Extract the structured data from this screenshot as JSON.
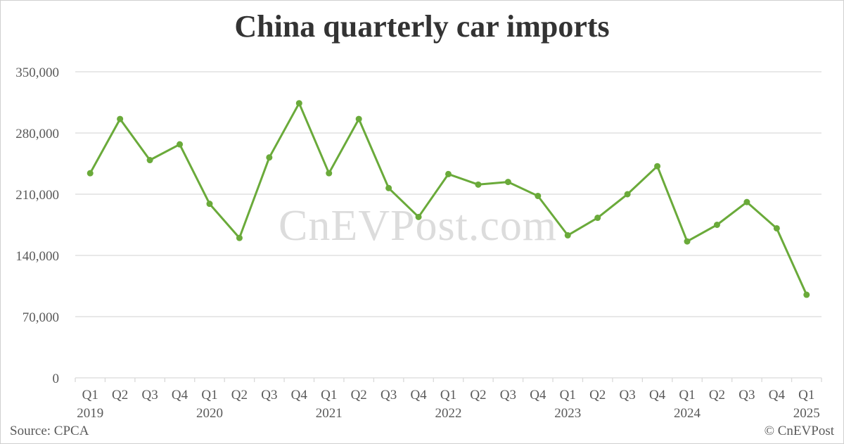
{
  "title": "China quarterly car imports",
  "watermark": "CnEVPost.com",
  "footer": {
    "source": "Source: CPCA",
    "copyright": "© CnEVPost"
  },
  "colors": {
    "line": "#6aaa3a",
    "grid": "#d9d9d9",
    "text": "#595959",
    "title": "#333333"
  },
  "chart_data": {
    "type": "line",
    "title": "China quarterly car imports",
    "xlabel": "",
    "ylabel": "",
    "ylim": [
      0,
      350000
    ],
    "yticks": [
      0,
      70000,
      140000,
      210000,
      280000,
      350000
    ],
    "ytick_labels": [
      "0",
      "70,000",
      "140,000",
      "210,000",
      "280,000",
      "350,000"
    ],
    "grid": true,
    "legend": "none",
    "categories": [
      "Q1 2019",
      "Q2 2019",
      "Q3 2019",
      "Q4 2019",
      "Q1 2020",
      "Q2 2020",
      "Q3 2020",
      "Q4 2020",
      "Q1 2021",
      "Q2 2021",
      "Q3 2021",
      "Q4 2021",
      "Q1 2022",
      "Q2 2022",
      "Q3 2022",
      "Q4 2022",
      "Q1 2023",
      "Q2 2023",
      "Q3 2023",
      "Q4 2023",
      "Q1 2024",
      "Q2 2024",
      "Q3 2024",
      "Q4 2024",
      "Q1 2025"
    ],
    "quarter_labels": [
      "Q1",
      "Q2",
      "Q3",
      "Q4",
      "Q1",
      "Q2",
      "Q3",
      "Q4",
      "Q1",
      "Q2",
      "Q3",
      "Q4",
      "Q1",
      "Q2",
      "Q3",
      "Q4",
      "Q1",
      "Q2",
      "Q3",
      "Q4",
      "Q1",
      "Q2",
      "Q3",
      "Q4",
      "Q1"
    ],
    "year_labels": [
      {
        "index": 0,
        "label": "2019"
      },
      {
        "index": 4,
        "label": "2020"
      },
      {
        "index": 8,
        "label": "2021"
      },
      {
        "index": 12,
        "label": "2022"
      },
      {
        "index": 16,
        "label": "2023"
      },
      {
        "index": 20,
        "label": "2024"
      },
      {
        "index": 24,
        "label": "2025"
      }
    ],
    "series": [
      {
        "name": "Car imports",
        "values": [
          234000,
          296000,
          249000,
          267000,
          199000,
          160000,
          252000,
          314000,
          234000,
          296000,
          217000,
          184000,
          233000,
          221000,
          224000,
          208000,
          163000,
          183000,
          210000,
          242000,
          156000,
          175000,
          201000,
          171000,
          95000
        ]
      }
    ]
  }
}
